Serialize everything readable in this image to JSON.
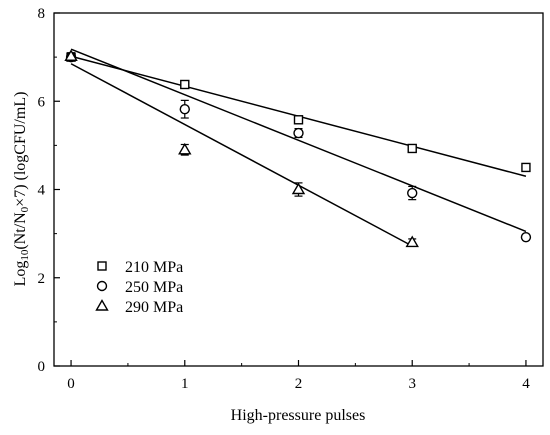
{
  "chart_data": {
    "type": "scatter",
    "xlabel": "High-pressure pulses",
    "ylabel_parts": [
      {
        "text": "Log",
        "sub": false
      },
      {
        "text": "10",
        "sub": true
      },
      {
        "text": "(Nt/N",
        "sub": false
      },
      {
        "text": "0",
        "sub": true
      },
      {
        "text": "×7) (logCFU/mL)",
        "sub": false
      }
    ],
    "xlim": [
      -0.15,
      4.15
    ],
    "ylim": [
      0,
      8
    ],
    "xticks": [
      "0",
      "1",
      "2",
      "3",
      "4"
    ],
    "yticks": [
      "0",
      "2",
      "4",
      "6",
      "8"
    ],
    "legend_position": "bottom-left",
    "series": [
      {
        "name": "210 MPa",
        "marker": "square",
        "points": [
          {
            "x": 0,
            "y": 7.0,
            "err": 0.06
          },
          {
            "x": 1,
            "y": 6.38,
            "err": 0.06
          },
          {
            "x": 2,
            "y": 5.58,
            "err": 0.06
          },
          {
            "x": 3,
            "y": 4.93,
            "err": 0.06
          },
          {
            "x": 4,
            "y": 4.5,
            "err": 0.06
          }
        ],
        "fit": [
          [
            0,
            7.02
          ],
          [
            4,
            4.3
          ]
        ]
      },
      {
        "name": "250 MPa",
        "marker": "circle",
        "points": [
          {
            "x": 0,
            "y": 7.0,
            "err": 0.08
          },
          {
            "x": 1,
            "y": 5.82,
            "err": 0.2
          },
          {
            "x": 2,
            "y": 5.28,
            "err": 0.1
          },
          {
            "x": 3,
            "y": 3.92,
            "err": 0.15
          },
          {
            "x": 4,
            "y": 2.92,
            "err": 0.06
          }
        ],
        "fit": [
          [
            0,
            7.18
          ],
          [
            4,
            3.05
          ]
        ]
      },
      {
        "name": "290 MPa",
        "marker": "triangle",
        "points": [
          {
            "x": 0,
            "y": 7.02,
            "err": 0.08
          },
          {
            "x": 1,
            "y": 4.9,
            "err": 0.12
          },
          {
            "x": 2,
            "y": 4.0,
            "err": 0.15
          },
          {
            "x": 3,
            "y": 2.8,
            "err": 0.08
          }
        ],
        "fit": [
          [
            0,
            6.85
          ],
          [
            3,
            2.72
          ]
        ]
      }
    ]
  }
}
